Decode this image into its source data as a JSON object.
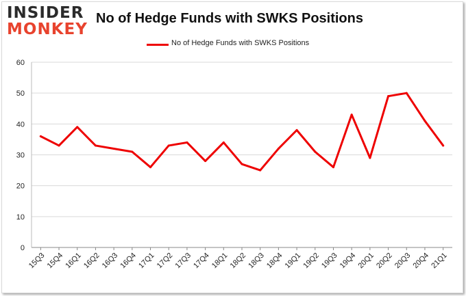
{
  "brand": {
    "line1": "INSIDER",
    "line2": "MONKEY"
  },
  "chart_data": {
    "type": "line",
    "title": "No of Hedge Funds with SWKS Positions",
    "xlabel": "",
    "ylabel": "",
    "ylim": [
      0,
      60
    ],
    "yticks": [
      0,
      10,
      20,
      30,
      40,
      50,
      60
    ],
    "grid": true,
    "legend_position": "top-center",
    "color": "#ee0000",
    "categories": [
      "15Q3",
      "15Q4",
      "16Q1",
      "16Q2",
      "16Q3",
      "16Q4",
      "17Q1",
      "17Q2",
      "17Q3",
      "17Q4",
      "18Q1",
      "18Q2",
      "18Q3",
      "18Q4",
      "19Q1",
      "19Q2",
      "19Q3",
      "19Q4",
      "20Q1",
      "20Q2",
      "20Q3",
      "20Q4",
      "21Q1"
    ],
    "series": [
      {
        "name": "No of Hedge Funds with SWKS Positions",
        "values": [
          36,
          33,
          39,
          33,
          32,
          31,
          26,
          33,
          34,
          28,
          34,
          27,
          25,
          32,
          38,
          31,
          26,
          43,
          29,
          49,
          50,
          41,
          33
        ]
      }
    ]
  }
}
